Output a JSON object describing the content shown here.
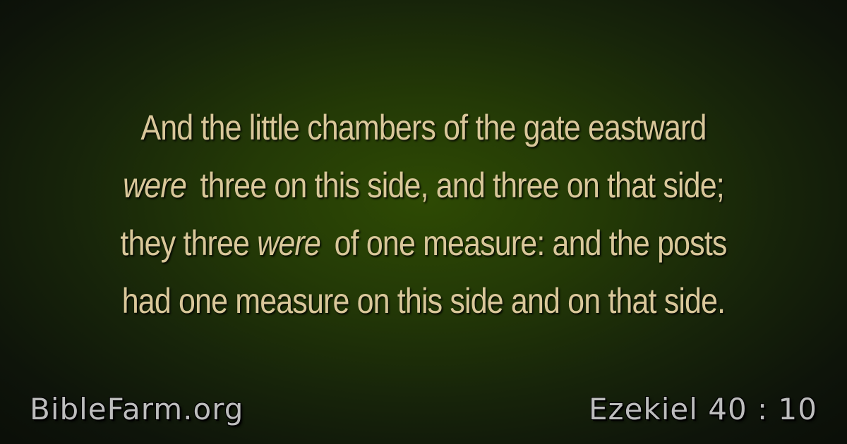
{
  "verse": {
    "lines": [
      [
        {
          "text": "And the little chambers of the gate eastward",
          "italic": false
        }
      ],
      [
        {
          "text": "were",
          "italic": true
        },
        {
          "text": " three on this side, and three on that side;",
          "italic": false
        }
      ],
      [
        {
          "text": "they three ",
          "italic": false
        },
        {
          "text": "were",
          "italic": true
        },
        {
          "text": " of one measure: and the posts",
          "italic": false
        }
      ],
      [
        {
          "text": "had one measure on this side and on that side.",
          "italic": false
        }
      ]
    ]
  },
  "footer": {
    "site": "BibleFarm.org",
    "reference": "Ezekiel 40 : 10"
  },
  "colors": {
    "verse_text": "#d9c79a",
    "footer_text": "#bdbdbd",
    "background_center": "#2e4a04",
    "background_edge": "#0b0f08"
  }
}
